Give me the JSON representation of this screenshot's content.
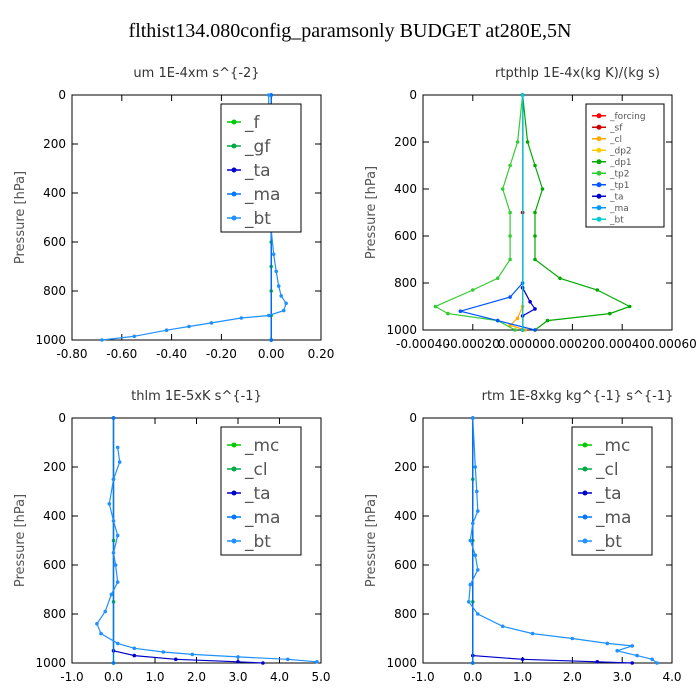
{
  "figure_title": "flthist134.080config_paramsonly  BUDGET at280E,5N",
  "chart_data": [
    {
      "type": "line",
      "title": "um   1E-4xm s^{-2}",
      "ylabel": "Pressure [hPa]",
      "xlim": [
        -0.8,
        0.2
      ],
      "ylim": [
        1000,
        0
      ],
      "xticks": [
        "-0.80",
        "-0.60",
        "-0.40",
        "-0.20",
        "0.00",
        "0.20"
      ],
      "xtick_values": [
        -0.8,
        -0.6,
        -0.4,
        -0.2,
        0.0,
        0.2
      ],
      "yticks": [
        0,
        200,
        400,
        600,
        800,
        1000
      ],
      "legend_position": "top-right",
      "legend_size": "large",
      "series": [
        {
          "name": "_f",
          "color": "#00cc00",
          "points": [
            [
              0.0,
              0
            ],
            [
              0.0,
              100
            ],
            [
              0.0,
              200
            ],
            [
              0.0,
              300
            ],
            [
              0.0,
              400
            ],
            [
              0.0,
              500
            ],
            [
              0.0,
              600
            ],
            [
              0.0,
              700
            ],
            [
              0.0,
              800
            ],
            [
              0.0,
              900
            ],
            [
              0.0,
              1000
            ]
          ]
        },
        {
          "name": "_gf",
          "color": "#00aa44",
          "points": [
            [
              0.0,
              0
            ],
            [
              0.0,
              500
            ],
            [
              0.0,
              1000
            ]
          ]
        },
        {
          "name": "_ta",
          "color": "#0000cc",
          "points": [
            [
              0.0,
              0
            ],
            [
              0.0,
              500
            ],
            [
              0.0,
              1000
            ]
          ]
        },
        {
          "name": "_ma",
          "color": "#0077ff",
          "points": [
            [
              0.0,
              0
            ],
            [
              0.0,
              500
            ],
            [
              0.0,
              1000
            ]
          ]
        },
        {
          "name": "_bt",
          "color": "#1e90ff",
          "points": [
            [
              -0.01,
              0
            ],
            [
              -0.01,
              80
            ],
            [
              0.01,
              120
            ],
            [
              0.02,
              180
            ],
            [
              0.0,
              250
            ],
            [
              -0.01,
              350
            ],
            [
              0.0,
              450
            ],
            [
              0.0,
              550
            ],
            [
              0.01,
              650
            ],
            [
              0.02,
              720
            ],
            [
              0.03,
              780
            ],
            [
              0.04,
              820
            ],
            [
              0.06,
              850
            ],
            [
              0.05,
              880
            ],
            [
              -0.01,
              900
            ],
            [
              -0.12,
              910
            ],
            [
              -0.24,
              930
            ],
            [
              -0.33,
              945
            ],
            [
              -0.42,
              960
            ],
            [
              -0.55,
              985
            ],
            [
              -0.68,
              1000
            ]
          ]
        }
      ]
    },
    {
      "type": "line",
      "title": "rtpthlp   1E-4x(kg K)/(kg s)",
      "ylabel": "Pressure [hPa]",
      "xlim": [
        -0.0004,
        0.0006
      ],
      "ylim": [
        1000,
        0
      ],
      "xticks": [
        "-0.00040",
        "-0.00020",
        "0.00000",
        "0.00020",
        "0.00040",
        "0.00060"
      ],
      "xtick_values": [
        -0.0004,
        -0.0002,
        0.0,
        0.0002,
        0.0004,
        0.0006
      ],
      "yticks": [
        0,
        200,
        400,
        600,
        800,
        1000
      ],
      "legend_position": "top-right",
      "legend_size": "small",
      "series": [
        {
          "name": "_forcing",
          "color": "#ff0000",
          "points": [
            [
              0.0,
              0
            ],
            [
              0.0,
              500
            ],
            [
              0.0,
              1000
            ]
          ]
        },
        {
          "name": "_sf",
          "color": "#cc0000",
          "points": [
            [
              0.0,
              0
            ],
            [
              0.0,
              500
            ],
            [
              0.0,
              1000
            ]
          ]
        },
        {
          "name": "_cl",
          "color": "#ffaa00",
          "points": [
            [
              0.0,
              0
            ],
            [
              0.0,
              900
            ],
            [
              -2e-05,
              950
            ],
            [
              -5e-05,
              980
            ],
            [
              1e-05,
              1000
            ]
          ]
        },
        {
          "name": "_dp2",
          "color": "#ffcc00",
          "points": [
            [
              0.0,
              0
            ],
            [
              0.0,
              1000
            ]
          ]
        },
        {
          "name": "_dp1",
          "color": "#00aa00",
          "points": [
            [
              0.0,
              0
            ],
            [
              2e-05,
              200
            ],
            [
              5e-05,
              300
            ],
            [
              8e-05,
              400
            ],
            [
              5e-05,
              500
            ],
            [
              5e-05,
              600
            ],
            [
              5e-05,
              700
            ],
            [
              0.00015,
              780
            ],
            [
              0.0003,
              830
            ],
            [
              0.00043,
              900
            ],
            [
              0.00035,
              930
            ],
            [
              0.0001,
              960
            ],
            [
              5e-05,
              1000
            ]
          ]
        },
        {
          "name": "_tp2",
          "color": "#33cc33",
          "points": [
            [
              0.0,
              0
            ],
            [
              -2e-05,
              200
            ],
            [
              -5e-05,
              300
            ],
            [
              -8e-05,
              400
            ],
            [
              -5e-05,
              500
            ],
            [
              -5e-05,
              600
            ],
            [
              -5e-05,
              700
            ],
            [
              -0.0001,
              780
            ],
            [
              -0.0002,
              830
            ],
            [
              -0.00035,
              900
            ],
            [
              -0.0003,
              930
            ],
            [
              -0.0001,
              960
            ],
            [
              -3e-05,
              1000
            ]
          ]
        },
        {
          "name": "_tp1",
          "color": "#0055ff",
          "points": [
            [
              0.0,
              0
            ],
            [
              0.0,
              800
            ],
            [
              -5e-05,
              860
            ],
            [
              -0.00025,
              920
            ],
            [
              -0.0001,
              960
            ],
            [
              5e-05,
              1000
            ]
          ]
        },
        {
          "name": "_ta",
          "color": "#0000cc",
          "points": [
            [
              0.0,
              0
            ],
            [
              0.0,
              820
            ],
            [
              3e-05,
              880
            ],
            [
              5e-05,
              910
            ],
            [
              0.0,
              940
            ],
            [
              0.0,
              1000
            ]
          ]
        },
        {
          "name": "_ma",
          "color": "#0099ff",
          "points": [
            [
              0.0,
              0
            ],
            [
              0.0,
              1000
            ]
          ]
        },
        {
          "name": "_bt",
          "color": "#00cccc",
          "points": [
            [
              0.0,
              0
            ],
            [
              0.0,
              1000
            ]
          ]
        }
      ]
    },
    {
      "type": "line",
      "title": "thlm   1E-5xK s^{-1}",
      "ylabel": "Pressure [hPa]",
      "xlim": [
        -1.0,
        5.0
      ],
      "ylim": [
        1000,
        0
      ],
      "xticks": [
        "-1.0",
        "0.0",
        "1.0",
        "2.0",
        "3.0",
        "4.0",
        "5.0"
      ],
      "xtick_values": [
        -1,
        0,
        1,
        2,
        3,
        4,
        5
      ],
      "yticks": [
        0,
        200,
        400,
        600,
        800,
        1000
      ],
      "legend_position": "top-right",
      "legend_size": "large",
      "series": [
        {
          "name": "_mc",
          "color": "#00cc00",
          "points": [
            [
              0.0,
              0
            ],
            [
              0.0,
              250
            ],
            [
              0.0,
              500
            ],
            [
              0.0,
              750
            ],
            [
              0.0,
              1000
            ]
          ]
        },
        {
          "name": "_cl",
          "color": "#00aa44",
          "points": [
            [
              0.0,
              0
            ],
            [
              0.0,
              1000
            ]
          ]
        },
        {
          "name": "_ta",
          "color": "#0000cc",
          "points": [
            [
              0.0,
              0
            ],
            [
              0.0,
              950
            ],
            [
              0.5,
              970
            ],
            [
              1.5,
              985
            ],
            [
              3.0,
              995
            ],
            [
              3.6,
              1000
            ]
          ]
        },
        {
          "name": "_ma",
          "color": "#0077ff",
          "points": [
            [
              0.0,
              0
            ],
            [
              0.0,
              1000
            ]
          ]
        },
        {
          "name": "_bt",
          "color": "#1e90ff",
          "points": [
            [
              0.1,
              120
            ],
            [
              0.15,
              180
            ],
            [
              0.0,
              250
            ],
            [
              -0.1,
              350
            ],
            [
              0.0,
              420
            ],
            [
              0.1,
              480
            ],
            [
              0.0,
              550
            ],
            [
              0.05,
              600
            ],
            [
              0.1,
              670
            ],
            [
              -0.05,
              720
            ],
            [
              -0.2,
              790
            ],
            [
              -0.4,
              840
            ],
            [
              -0.3,
              880
            ],
            [
              0.1,
              920
            ],
            [
              0.5,
              940
            ],
            [
              1.2,
              955
            ],
            [
              1.9,
              965
            ],
            [
              3.0,
              975
            ],
            [
              4.2,
              985
            ],
            [
              4.9,
              995
            ]
          ]
        }
      ]
    },
    {
      "type": "line",
      "title": "rtm   1E-8xkg kg^{-1} s^{-1}",
      "ylabel": "Pressure [hPa]",
      "xlim": [
        -1.0,
        4.0
      ],
      "ylim": [
        1000,
        0
      ],
      "xticks": [
        "-1.0",
        "0.0",
        "1.0",
        "2.0",
        "3.0",
        "4.0"
      ],
      "xtick_values": [
        -1,
        0,
        1,
        2,
        3,
        4
      ],
      "yticks": [
        0,
        200,
        400,
        600,
        800,
        1000
      ],
      "legend_position": "top-right",
      "legend_size": "large",
      "series": [
        {
          "name": "_mc",
          "color": "#00cc00",
          "points": [
            [
              0.0,
              0
            ],
            [
              0.0,
              250
            ],
            [
              0.0,
              500
            ],
            [
              0.0,
              750
            ],
            [
              0.0,
              1000
            ]
          ]
        },
        {
          "name": "_cl",
          "color": "#00aa44",
          "points": [
            [
              0.0,
              0
            ],
            [
              0.0,
              1000
            ]
          ]
        },
        {
          "name": "_ta",
          "color": "#0000cc",
          "points": [
            [
              0.0,
              0
            ],
            [
              0.0,
              970
            ],
            [
              1.0,
              985
            ],
            [
              2.5,
              995
            ],
            [
              3.2,
              1000
            ]
          ]
        },
        {
          "name": "_ma",
          "color": "#0077ff",
          "points": [
            [
              0.0,
              0
            ],
            [
              0.0,
              1000
            ]
          ]
        },
        {
          "name": "_bt",
          "color": "#1e90ff",
          "points": [
            [
              0.0,
              0
            ],
            [
              0.05,
              200
            ],
            [
              0.08,
              300
            ],
            [
              0.1,
              380
            ],
            [
              0.0,
              430
            ],
            [
              -0.05,
              500
            ],
            [
              0.05,
              560
            ],
            [
              0.1,
              620
            ],
            [
              -0.05,
              680
            ],
            [
              -0.08,
              750
            ],
            [
              0.1,
              800
            ],
            [
              0.6,
              850
            ],
            [
              1.2,
              880
            ],
            [
              2.0,
              900
            ],
            [
              2.7,
              920
            ],
            [
              3.2,
              930
            ],
            [
              2.9,
              950
            ],
            [
              3.3,
              970
            ],
            [
              3.6,
              985
            ],
            [
              3.7,
              1000
            ]
          ]
        }
      ]
    }
  ]
}
